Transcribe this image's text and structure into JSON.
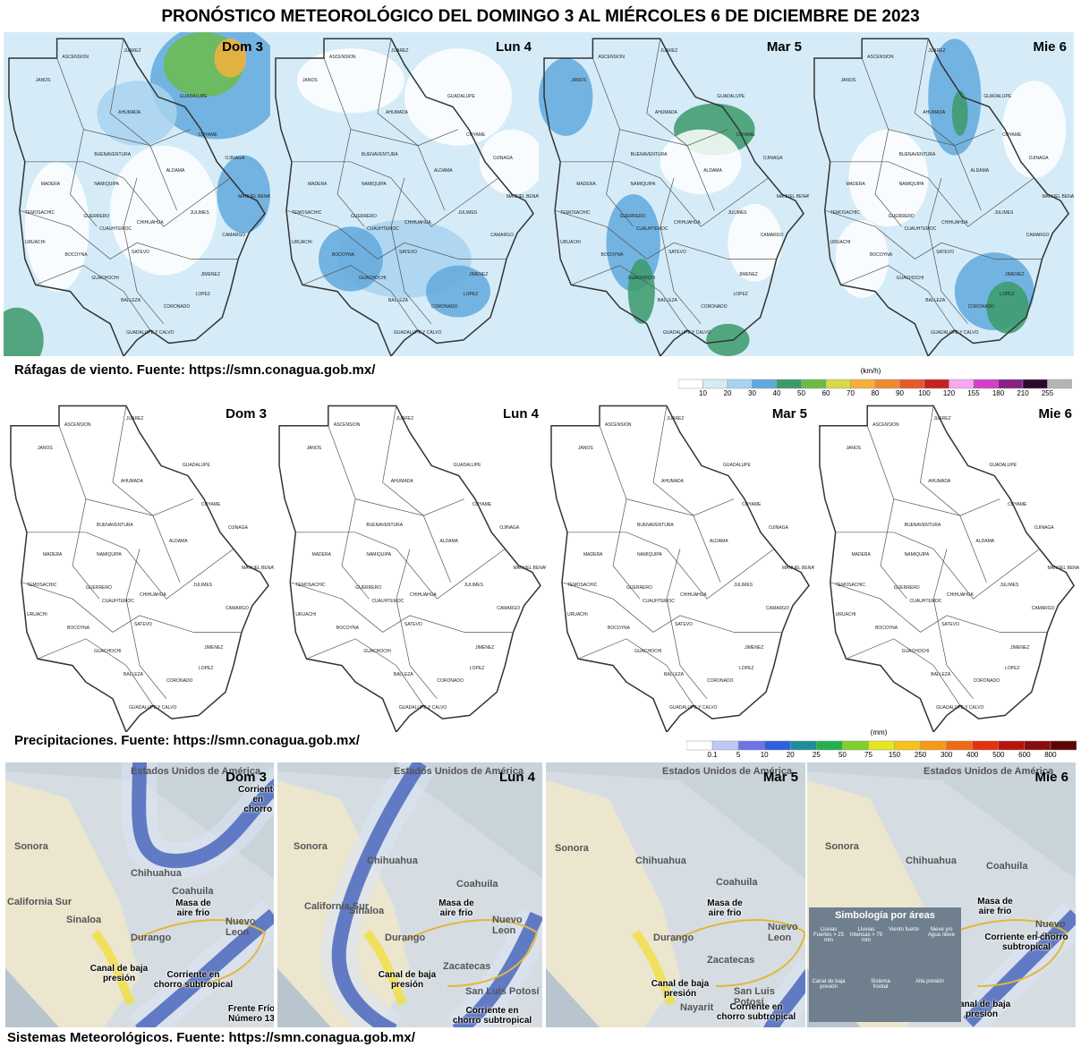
{
  "title": "PRONÓSTICO METEOROLÓGICO DEL DOMINGO 3 AL MIÉRCOLES 6 DE DICIEMBRE DE 2023",
  "municipalities": [
    "JUAREZ",
    "ASCENSION",
    "JANOS",
    "AHUMADA",
    "GUADALUPE",
    "COYAME",
    "OJINAGA",
    "BUENAVENTURA",
    "MADERA",
    "NAMIQUIPA",
    "ALDAMA",
    "GUERRERO",
    "CUAUHTEMOC",
    "CHIHUAHUA",
    "JULIMES",
    "CAMARGO",
    "URUACHI",
    "BOCOYNA",
    "SATEVO",
    "GUACHOCHI",
    "JIMENEZ",
    "BALLEZA",
    "CORONADO",
    "LOPEZ",
    "GUADALUPE Y CALVO",
    "MANUEL BENAVIDES",
    "TEMOSACHIC"
  ],
  "wind": {
    "days": [
      "Dom 3",
      "Lun 4",
      "Mar 5",
      "Mie 6"
    ],
    "caption": "Ráfagas de viento.  Fuente: https://smn.conagua.gob.mx/",
    "legend": {
      "unit": "(km/h)",
      "ticks": [
        10,
        20,
        30,
        40,
        50,
        60,
        70,
        80,
        90,
        100,
        120,
        155,
        180,
        210,
        255
      ],
      "colors": [
        "#ffffff",
        "#d5ecf8",
        "#a8d3f0",
        "#62a9dd",
        "#3b9a6a",
        "#6bbb4a",
        "#d7d84a",
        "#f4b03c",
        "#f08a30",
        "#e45a2a",
        "#c7221f",
        "#f7a8ef",
        "#d23fc9",
        "#8a1f86",
        "#2a0a2a",
        "#b5b5b5"
      ]
    }
  },
  "precipitation": {
    "days": [
      "Dom 3",
      "Lun 4",
      "Mar 5",
      "Mie 6"
    ],
    "caption": "Precipitaciones.  Fuente: https://smn.conagua.gob.mx/",
    "legend": {
      "unit": "(mm)",
      "ticks": [
        0.1,
        5,
        10,
        20,
        25,
        50,
        75,
        150,
        250,
        300,
        400,
        500,
        600,
        800
      ],
      "colors": [
        "#ffffff",
        "#bcc8f5",
        "#6f73e8",
        "#2f5fe0",
        "#1e8f9a",
        "#23b14d",
        "#7fd02a",
        "#e6e61c",
        "#f6c21b",
        "#f59a17",
        "#ee6a12",
        "#e2320f",
        "#b8140e",
        "#8a0c0c",
        "#5c0606"
      ]
    }
  },
  "systems": {
    "caption": "Sistemas Meteorológicos.    Fuente: https://smn.conagua.gob.mx/",
    "panels": [
      {
        "day": "Dom 3",
        "labels": [
          "Estados Unidos de América",
          "Sonora",
          "Chihuahua",
          "Coahuila",
          "Masa de aire frio",
          "Sinaloa",
          "California Sur",
          "Durango",
          "Nuevo Leon",
          "Canal de baja presión",
          "Corriente en chorro subtropical",
          "Frente Frío Número 13",
          "Corriente en chorro"
        ]
      },
      {
        "day": "Lun 4",
        "labels": [
          "Estados Unidos de América",
          "Sonora",
          "Chihuahua",
          "Coahuila",
          "Masa de aire frio",
          "Sinaloa",
          "California Sur",
          "Durango",
          "Nuevo Leon",
          "Zacatecas",
          "Canal de baja presión",
          "San Luis Potosí",
          "Corriente en chorro subtropical"
        ]
      },
      {
        "day": "Mar 5",
        "labels": [
          "Estados Unidos de América",
          "Sonora",
          "Chihuahua",
          "Coahuila",
          "Masa de aire frio",
          "Durango",
          "Nuevo Leon",
          "Zacatecas",
          "Canal de baja presión",
          "Nayarit",
          "Corriente en chorro subtropical",
          "San Luis Potosí"
        ]
      },
      {
        "day": "Mie 6",
        "labels": [
          "Estados Unidos de América",
          "Sonora",
          "Chihuahua",
          "Coahuila",
          "Masa de aire frio",
          "Nuevo Leon",
          "Corriente en chorro subtropical",
          "Canal de baja presión"
        ]
      }
    ],
    "symbology": {
      "title": "Simbología por áreas",
      "items": [
        "Lluvias Fuertes > 25 mm",
        "Lluvias Intensas > 75 mm",
        "Viento fuerte",
        "Nieve y/o Agua nieve",
        "Canal de baja presión",
        "Sistema frontal",
        "Alta presión"
      ]
    }
  }
}
